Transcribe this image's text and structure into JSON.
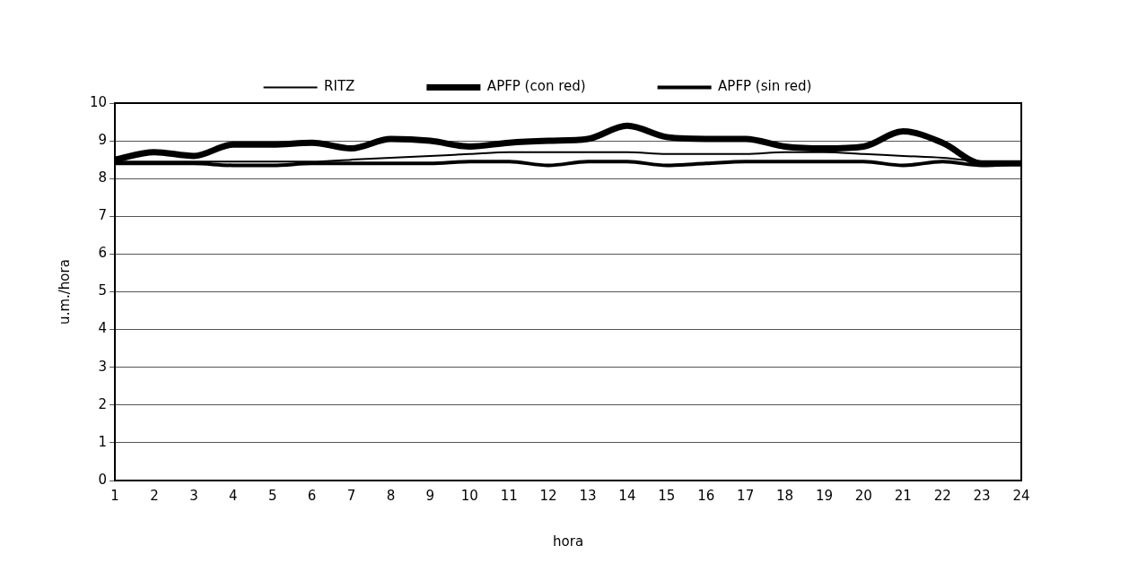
{
  "chart_data": {
    "type": "line",
    "xlabel": "hora",
    "ylabel": "u.m./hora",
    "x": [
      1,
      2,
      3,
      4,
      5,
      6,
      7,
      8,
      9,
      10,
      11,
      12,
      13,
      14,
      15,
      16,
      17,
      18,
      19,
      20,
      21,
      22,
      23,
      24
    ],
    "xlim": [
      1,
      24
    ],
    "xticks": [
      1,
      2,
      3,
      4,
      5,
      6,
      7,
      8,
      9,
      10,
      11,
      12,
      13,
      14,
      15,
      16,
      17,
      18,
      19,
      20,
      21,
      22,
      23,
      24
    ],
    "ylim": [
      0,
      10
    ],
    "yticks": [
      0,
      1,
      2,
      3,
      4,
      5,
      6,
      7,
      8,
      9,
      10
    ],
    "grid": "y",
    "legend": "top",
    "marker": "none",
    "line_style": "solid",
    "series": [
      {
        "name": "RITZ",
        "color": "#000000",
        "values": [
          8.45,
          8.45,
          8.45,
          8.45,
          8.45,
          8.45,
          8.5,
          8.55,
          8.6,
          8.65,
          8.7,
          8.7,
          8.7,
          8.7,
          8.65,
          8.65,
          8.65,
          8.7,
          8.7,
          8.65,
          8.6,
          8.55,
          8.45,
          8.4
        ]
      },
      {
        "name": "APFP (con red)",
        "color": "#000000",
        "values": [
          8.5,
          8.7,
          8.6,
          8.9,
          8.9,
          8.95,
          8.8,
          9.05,
          9.0,
          8.85,
          8.95,
          9.0,
          9.05,
          9.4,
          9.1,
          9.05,
          9.05,
          8.85,
          8.8,
          8.85,
          9.25,
          8.95,
          8.4,
          8.4
        ]
      },
      {
        "name": "APFP (sin red)",
        "color": "#000000",
        "values": [
          8.4,
          8.4,
          8.4,
          8.35,
          8.35,
          8.4,
          8.4,
          8.4,
          8.4,
          8.45,
          8.45,
          8.35,
          8.45,
          8.45,
          8.35,
          8.4,
          8.45,
          8.45,
          8.45,
          8.45,
          8.35,
          8.45,
          8.35,
          8.4
        ]
      }
    ]
  }
}
